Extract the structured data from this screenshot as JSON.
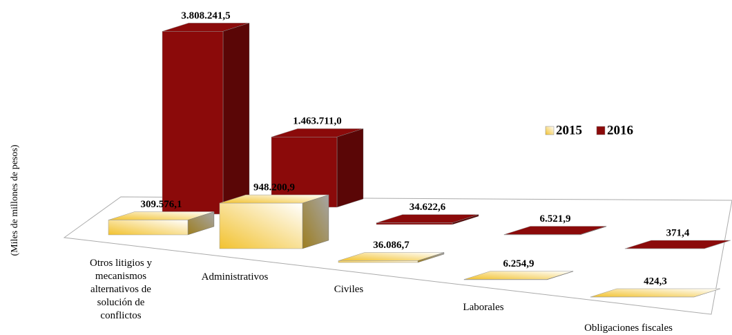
{
  "chart_data": {
    "type": "bar3d",
    "y_label": "(Miles de millones de pesos)",
    "categories": [
      "Otros litigios y mecanismos alternativos de solución de conflictos",
      "Administrativos",
      "Civiles",
      "Laborales",
      "Obligaciones fiscales"
    ],
    "series": [
      {
        "name": "2015",
        "color": "#f2cf5b",
        "values": [
          309576.1,
          948200.9,
          36086.7,
          6254.9,
          424.3
        ],
        "value_labels": [
          "309.576,1",
          "948.200,9",
          "36.086,7",
          "6.254,9",
          "424,3"
        ]
      },
      {
        "name": "2016",
        "color": "#8b0a0a",
        "values": [
          3808241.5,
          1463711.0,
          34622.6,
          6521.9,
          371.4
        ],
        "value_labels": [
          "3.808.241,5",
          "1.463.711,0",
          "34.622,6",
          "6.521,9",
          "371,4"
        ]
      }
    ],
    "ylim": [
      0,
      4000000
    ],
    "legend": "right"
  }
}
